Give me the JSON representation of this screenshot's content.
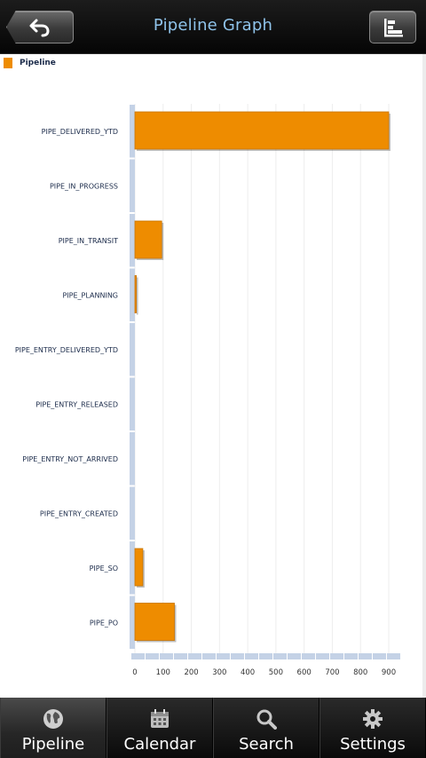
{
  "header": {
    "title": "Pipeline Graph",
    "back_icon": "back-arrow-icon",
    "chart_toggle_icon": "bar-chart-icon"
  },
  "legend": {
    "label": "Pipeline",
    "color": "#ee8c00"
  },
  "chart_data": {
    "type": "bar",
    "orientation": "horizontal",
    "title": "",
    "xlabel": "",
    "ylabel": "",
    "xlim": [
      0,
      900
    ],
    "xticks": [
      0,
      100,
      200,
      300,
      400,
      500,
      600,
      700,
      800,
      900
    ],
    "grid": true,
    "categories": [
      "PIPE_DELIVERED_YTD",
      "PIPE_IN_PROGRESS",
      "PIPE_IN_TRANSIT",
      "PIPE_PLANNING",
      "PIPE_ENTRY_DELIVERED_YTD",
      "PIPE_ENTRY_RELEASED",
      "PIPE_ENTRY_NOT_ARRIVED",
      "PIPE_ENTRY_CREATED",
      "PIPE_SO",
      "PIPE_PO"
    ],
    "series": [
      {
        "name": "Pipeline",
        "values": [
          900,
          0,
          95,
          5,
          0,
          0,
          0,
          0,
          28,
          140
        ]
      }
    ],
    "bar_color": "#ee8c00",
    "axis_color": "#c4d2e6"
  },
  "tabs": [
    {
      "label": "Pipeline",
      "icon": "globe-icon",
      "active": true
    },
    {
      "label": "Calendar",
      "icon": "calendar-icon",
      "active": false
    },
    {
      "label": "Search",
      "icon": "search-icon",
      "active": false
    },
    {
      "label": "Settings",
      "icon": "gear-icon",
      "active": false
    }
  ]
}
